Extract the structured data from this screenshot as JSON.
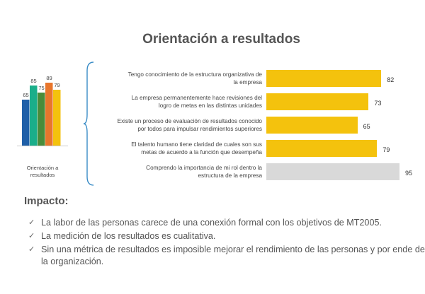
{
  "title": "Orientación a resultados",
  "chart_data": [
    {
      "type": "bar",
      "categories": [
        "",
        "",
        "",
        "",
        ""
      ],
      "values": [
        65,
        85,
        75,
        89,
        79
      ],
      "colors": [
        "#1F5FA8",
        "#1AAE8A",
        "#4A8C3A",
        "#E8762C",
        "#F4C20D"
      ],
      "xlabel": "Orientación a resultados",
      "ylim": [
        0,
        100
      ]
    },
    {
      "type": "bar",
      "orientation": "horizontal",
      "categories": [
        "Tengo conocimiento de la estructura organizativa de la empresa",
        "La empresa permanentemente hace revisiones del logro de metas en las distintas unidades",
        "Existe un proceso de evaluación de resultados conocido por todos para impulsar rendimientos superiores",
        "El talento humano tiene claridad de cuales son sus metas de acuerdo a la función que desempeña",
        "Comprendo la importancia de mi rol dentro la estructura de la empresa"
      ],
      "values": [
        82,
        73,
        65,
        79,
        95
      ],
      "colors": [
        "#F4C20D",
        "#F4C20D",
        "#F4C20D",
        "#F4C20D",
        "#D9D9D9"
      ],
      "xlim": [
        0,
        100
      ]
    }
  ],
  "chart_text": {
    "mini_labels": [
      "65",
      "85",
      "75",
      "89",
      "79"
    ],
    "mini_axis_label_line1": "Orientación a",
    "mini_axis_label_line2": "resultados",
    "label_lines": [
      [
        "Tengo conocimiento de la estructura organizativa de",
        "la empresa"
      ],
      [
        "La empresa permanentemente hace revisiones del",
        "logro de metas en las distintas unidades"
      ],
      [
        "Existe un proceso de evaluación de resultados conocido",
        "por todos para impulsar rendimientos superiores"
      ],
      [
        "El talento humano tiene claridad de cuales son sus",
        "metas de acuerdo a la función que desempeña"
      ],
      [
        "Comprendo la importancia de mi rol dentro la",
        "estructura de la empresa"
      ]
    ],
    "value_labels": [
      "82",
      "73",
      "65",
      "79",
      "95"
    ]
  },
  "impacto": {
    "heading": "Impacto:",
    "items": [
      "La labor de las personas carece de una conexión formal con los objetivos de MT2005.",
      "La medición de los resultados es cualitativa.",
      "Sin una métrica de resultados es imposible mejorar el rendimiento de las personas y por ende de la organización."
    ],
    "bullet_icon": "checkmark-icon"
  }
}
